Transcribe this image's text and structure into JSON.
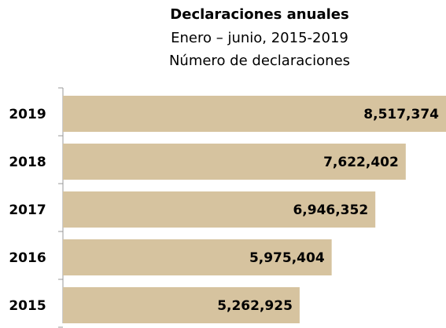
{
  "chart_data": {
    "type": "hbar",
    "title": "Declaraciones anuales",
    "subtitle": "Enero – junio, 2015-2019",
    "unit_label": "Número de declaraciones",
    "categories": [
      "2019",
      "2018",
      "2017",
      "2016",
      "2015"
    ],
    "values": [
      8517374,
      7622402,
      6946352,
      5975404,
      5262925
    ],
    "value_labels": [
      "8,517,374",
      "7,622,402",
      "6,946,352",
      "5,975,404",
      "5,262,925"
    ],
    "color": "#d6c39f"
  }
}
